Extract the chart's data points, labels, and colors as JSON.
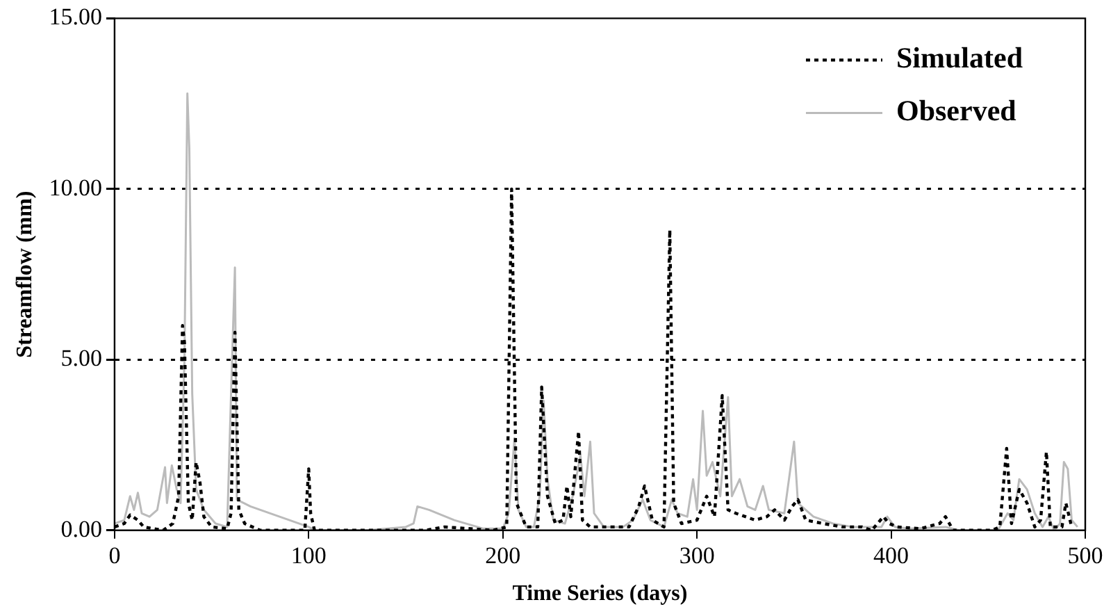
{
  "chart_data": {
    "type": "line",
    "xlabel": "Time Series (days)",
    "ylabel": "Streamflow (mm)",
    "xlim": [
      0,
      500
    ],
    "xticks": [
      0,
      100,
      200,
      300,
      400,
      500
    ],
    "ylim": [
      0,
      15
    ],
    "yticks": [
      {
        "value": 0,
        "label": "0.00"
      },
      {
        "value": 5,
        "label": "5.00"
      },
      {
        "value": 10,
        "label": "10.00"
      },
      {
        "value": 15,
        "label": "15.00"
      }
    ],
    "grid": "y",
    "legend": "top right",
    "marker": "none",
    "series": [
      {
        "name": "Simulated",
        "color": "#000000",
        "line_style": "dotted",
        "x": [
          0,
          5,
          8,
          12,
          15,
          20,
          25,
          30,
          33,
          35,
          36,
          38,
          40,
          42,
          44,
          46,
          50,
          58,
          60,
          62,
          64,
          67,
          75,
          90,
          98,
          100,
          101,
          103,
          110,
          125,
          135,
          160,
          170,
          195,
          202,
          204.5,
          207,
          212,
          218,
          220,
          223,
          227,
          231,
          233,
          235,
          239,
          241,
          245,
          265,
          270,
          273,
          277,
          283,
          286,
          288,
          292,
          300,
          305,
          309,
          313,
          316,
          320,
          325,
          330,
          336,
          340,
          345,
          349,
          352,
          356,
          365,
          375,
          385,
          390,
          396,
          399,
          403,
          415,
          425,
          428,
          432,
          440,
          447,
          452,
          456,
          459.5,
          462,
          466,
          470,
          474,
          477,
          480,
          482,
          488,
          490,
          493
        ],
        "values": [
          0.1,
          0.2,
          0.45,
          0.3,
          0.1,
          0.05,
          0,
          0.2,
          1,
          6,
          5.5,
          0.8,
          0.3,
          2,
          1.4,
          0.4,
          0.1,
          0.05,
          0.5,
          5.8,
          0.6,
          0.2,
          0,
          0,
          0,
          1.8,
          0.5,
          0,
          0,
          0,
          0,
          0,
          0.1,
          0,
          0.1,
          10,
          0.8,
          0.1,
          0.1,
          4.2,
          1,
          0.2,
          0.3,
          1.3,
          0.4,
          2.9,
          0.3,
          0.1,
          0.1,
          0.7,
          1.3,
          0.3,
          0.1,
          8.8,
          0.8,
          0.2,
          0.3,
          1,
          0.4,
          3.95,
          0.6,
          0.5,
          0.4,
          0.3,
          0.4,
          0.6,
          0.3,
          0.7,
          0.9,
          0.3,
          0.2,
          0.1,
          0.1,
          0,
          0.4,
          0.2,
          0.1,
          0.05,
          0.2,
          0.4,
          0,
          0,
          0,
          0,
          0.1,
          2.4,
          0.2,
          1.2,
          0.8,
          0.1,
          0.3,
          2.3,
          0.1,
          0.1,
          0.8,
          0.1
        ]
      },
      {
        "name": "Observed",
        "color": "#bbbbbb",
        "line_style": "solid",
        "x": [
          0,
          5,
          8,
          10,
          12,
          14,
          18,
          22,
          26,
          27,
          29.5,
          32,
          34,
          36,
          37.5,
          38.5,
          40,
          42,
          46,
          52,
          58,
          60,
          62,
          63,
          70,
          85,
          100,
          103,
          130,
          150,
          154,
          156,
          162,
          175,
          190,
          200,
          203,
          206,
          208,
          212,
          216,
          219,
          221,
          223,
          226,
          232,
          236,
          240,
          242,
          245,
          247,
          252,
          262,
          267,
          272,
          276,
          283,
          287,
          290,
          295,
          298,
          300,
          303,
          305,
          308,
          312,
          316,
          318,
          322,
          326,
          330,
          334,
          337,
          345,
          350,
          352,
          360,
          370,
          380,
          395,
          398,
          402,
          410,
          428,
          435,
          445,
          455,
          460,
          463,
          466,
          470,
          474,
          478,
          481,
          484,
          487,
          489,
          491,
          493,
          496
        ],
        "values": [
          0.2,
          0.3,
          1,
          0.6,
          1.1,
          0.5,
          0.4,
          0.6,
          1.85,
          0.8,
          1.9,
          1.2,
          0.8,
          5,
          12.8,
          11.2,
          4,
          1.2,
          0.6,
          0.2,
          0.1,
          4,
          7.7,
          0.9,
          0.7,
          0.4,
          0.1,
          0,
          0,
          0.1,
          0.2,
          0.7,
          0.6,
          0.3,
          0.05,
          0.05,
          0.5,
          2.7,
          0.6,
          0.1,
          0.1,
          1,
          3.8,
          1.5,
          0.3,
          0.2,
          1,
          2.2,
          1,
          2.6,
          0.5,
          0.1,
          0.1,
          0.3,
          0.9,
          0.3,
          0.1,
          0.9,
          0.5,
          0.4,
          1.5,
          0.6,
          3.5,
          1.6,
          2,
          1,
          3.9,
          1,
          1.5,
          0.7,
          0.6,
          1.3,
          0.6,
          0.5,
          2.6,
          0.8,
          0.4,
          0.2,
          0.1,
          0.1,
          0.4,
          0.1,
          0.05,
          0.1,
          0,
          0,
          0,
          0.5,
          0.3,
          1.5,
          1.2,
          0.5,
          0.1,
          0.4,
          0,
          0.2,
          2,
          1.8,
          0.3,
          0.1
        ]
      }
    ]
  }
}
